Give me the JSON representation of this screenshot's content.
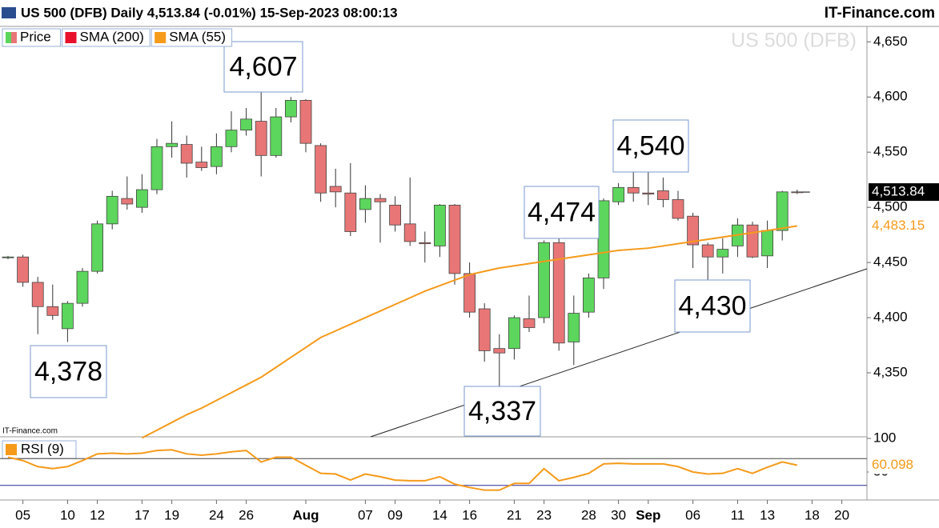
{
  "chart_data": {
    "type": "candlestick",
    "title": "US 500 (DFB) Daily 4,513.84 (-0.01%) 15-Sep-2023 08:00:13",
    "source": "IT-Finance.com",
    "watermark": "US 500 (DFB)",
    "footer_source": "IT-Finance.com",
    "price_name": "Price",
    "up_color": "#5cd65c",
    "down_color": "#e87676",
    "categories": [
      null,
      "05",
      null,
      null,
      "10",
      null,
      "12",
      null,
      null,
      "17",
      null,
      "19",
      null,
      null,
      "24",
      null,
      "26",
      null,
      null,
      null,
      "Aug",
      null,
      null,
      null,
      "07",
      null,
      "09",
      null,
      null,
      "14",
      null,
      "16",
      null,
      null,
      "21",
      null,
      "23",
      null,
      null,
      "28",
      null,
      "30",
      null,
      "Sep",
      null,
      null,
      "06",
      null,
      null,
      "11",
      null,
      "13",
      null,
      null,
      "18",
      null,
      "20",
      null
    ],
    "open": [
      4455,
      4455,
      4432,
      4410,
      4390,
      4413,
      4442,
      4485,
      4508,
      4500,
      4516,
      4555,
      4557,
      4541,
      4537,
      4555,
      4570,
      4578,
      4547,
      4582,
      4597,
      4556,
      4519,
      4513,
      4498,
      4508,
      4502,
      4485,
      4468,
      4465,
      4502,
      4440,
      4408,
      4372,
      4372,
      4399,
      4400,
      4468,
      4378,
      4405,
      4436,
      4505,
      4518,
      4513,
      4515,
      4507,
      4492,
      4466,
      4455,
      4465,
      4484,
      4456,
      4479,
      4514,
      null,
      null,
      null,
      null
    ],
    "high": [
      4456,
      4457,
      4437,
      4430,
      4415,
      4445,
      4488,
      4515,
      4528,
      4530,
      4562,
      4578,
      4565,
      4555,
      4567,
      4587,
      4590,
      4607,
      4590,
      4600,
      4598,
      4558,
      4535,
      4540,
      4520,
      4512,
      4510,
      4527,
      4478,
      4503,
      4503,
      4450,
      4413,
      4385,
      4402,
      4420,
      4470,
      4474,
      4420,
      4440,
      4508,
      4522,
      4532,
      4540,
      4527,
      4515,
      4495,
      4468,
      4472,
      4490,
      4487,
      4488,
      4515,
      4516,
      null,
      null,
      null,
      null
    ],
    "low": [
      4453,
      4428,
      4385,
      4398,
      4378,
      4410,
      4440,
      4480,
      4498,
      4495,
      4512,
      4545,
      4527,
      4533,
      4530,
      4550,
      4565,
      4528,
      4545,
      4577,
      4550,
      4505,
      4500,
      4474,
      4486,
      4468,
      4478,
      4465,
      4450,
      4455,
      4430,
      4400,
      4360,
      4337,
      4362,
      4387,
      4395,
      4370,
      4357,
      4400,
      4426,
      4502,
      4505,
      4502,
      4500,
      4488,
      4445,
      4430,
      4440,
      4455,
      4454,
      4445,
      4470,
      4512,
      null,
      null,
      null,
      null
    ],
    "close": [
      4455,
      4432,
      4410,
      4402,
      4413,
      4442,
      4485,
      4510,
      4503,
      4516,
      4555,
      4558,
      4540,
      4536,
      4555,
      4570,
      4580,
      4547,
      4582,
      4597,
      4558,
      4513,
      4514,
      4478,
      4508,
      4505,
      4484,
      4469,
      4467,
      4502,
      4440,
      4405,
      4370,
      4368,
      4400,
      4391,
      4468,
      4377,
      4404,
      4436,
      4506,
      4518,
      4513,
      4512,
      4507,
      4490,
      4466,
      4455,
      4462,
      4484,
      4455,
      4479,
      4514,
      4513.84,
      null,
      null,
      null,
      null
    ],
    "close_label": "4,513.84",
    "series": [
      {
        "name": "SMA (200)",
        "color": "#e8102a"
      },
      {
        "name": "SMA (55)",
        "color": "#f59a1a",
        "last_label": "4,483.15",
        "values": [
          null,
          null,
          null,
          null,
          null,
          null,
          null,
          null,
          null,
          4291,
          4298,
          4305,
          4312,
          4318,
          4325,
          4332,
          4339,
          4346,
          4355,
          4364,
          4373,
          4382,
          4388,
          4394,
          4400,
          4406,
          4412,
          4418,
          4424,
          4429,
          4434,
          4439,
          4442,
          4445,
          4447,
          4449,
          4451,
          4453,
          4455,
          4457,
          4459,
          4461,
          4462,
          4463,
          4465,
          4467,
          4469,
          4471,
          4473,
          4475,
          4477,
          4479,
          4481,
          4483.15,
          null,
          null,
          null,
          null
        ]
      }
    ],
    "ylim": [
      4292,
      4664
    ],
    "yticks": [
      {
        "value": 4350,
        "label": "4,350"
      },
      {
        "value": 4400,
        "label": "4,400"
      },
      {
        "value": 4450,
        "label": "4,450"
      },
      {
        "value": 4500,
        "label": "4,500"
      },
      {
        "value": 4550,
        "label": "4,550"
      },
      {
        "value": 4600,
        "label": "4,600"
      },
      {
        "value": 4650,
        "label": "4,650"
      }
    ],
    "annotations": [
      {
        "text": "4,607"
      },
      {
        "text": "4,378"
      },
      {
        "text": "4,337"
      },
      {
        "text": "4,474"
      },
      {
        "text": "4,540"
      },
      {
        "text": "4,430"
      }
    ],
    "rsi": {
      "name": "RSI (9)",
      "color": "#f59a1a",
      "last_label": "60.098",
      "values": [
        72,
        67,
        58,
        55,
        58,
        67,
        77,
        78,
        77,
        78,
        82,
        83,
        77,
        75,
        77,
        80,
        82,
        65,
        72,
        72,
        60,
        48,
        47,
        38,
        47,
        43,
        38,
        37,
        37,
        43,
        32,
        27,
        23,
        23,
        33,
        33,
        55,
        37,
        42,
        48,
        62,
        63,
        62,
        62,
        62,
        58,
        50,
        47,
        48,
        55,
        48,
        57,
        65,
        60.098,
        null,
        null,
        null,
        null
      ],
      "ylim": [
        0,
        100
      ],
      "yticks": [
        100,
        50
      ],
      "levels": [
        70,
        30
      ],
      "level_colors": [
        "#444444",
        "#2a2a9a"
      ]
    }
  }
}
